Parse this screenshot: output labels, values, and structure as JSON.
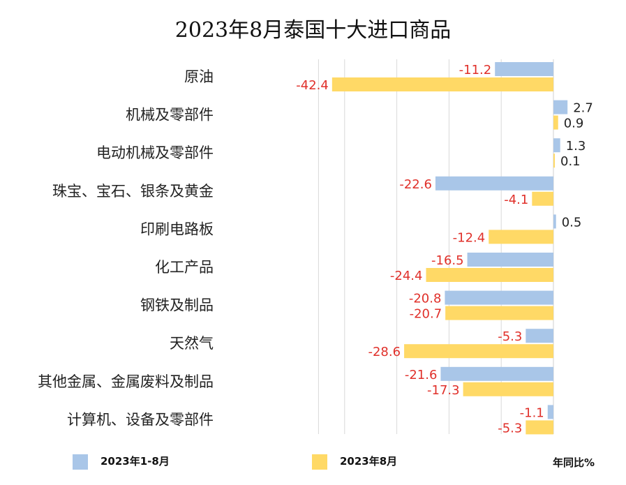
{
  "chart_data": {
    "type": "bar",
    "orientation": "horizontal",
    "title": "2023年8月泰国十大进口商品",
    "ylabel": "年同比%",
    "categories": [
      "原油",
      "机械及零部件",
      "电动机械及零部件",
      "珠宝、宝石、银条及黄金",
      "印刷电路板",
      "化工产品",
      "钢铁及制品",
      "天然气",
      "其他金属、金属废料及制品",
      "计算机、设备及零部件"
    ],
    "series": [
      {
        "name": "2023年1-8月",
        "color": "#a9c6e8",
        "values": [
          -11.2,
          2.7,
          1.3,
          -22.6,
          0.5,
          -16.5,
          -20.8,
          -5.3,
          -21.6,
          -1.1
        ]
      },
      {
        "name": "2023年8月",
        "color": "#ffd966",
        "values": [
          -42.4,
          0.9,
          0.1,
          -4.1,
          -12.4,
          -24.4,
          -20.7,
          -28.6,
          -17.3,
          -5.3
        ]
      }
    ],
    "xlim": [
      -45,
      2.7
    ],
    "label_color_negative": "#e0302a",
    "label_color_positive": "#222222",
    "grid": true
  }
}
